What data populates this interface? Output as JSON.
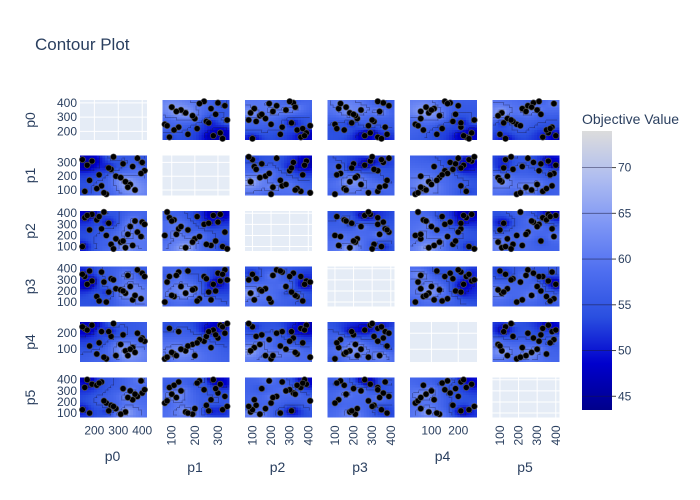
{
  "chart_data": {
    "type": "contour",
    "title": "Contour Plot",
    "params": [
      "p0",
      "p1",
      "p2",
      "p3",
      "p4",
      "p5"
    ],
    "x_ticks": {
      "p0": [
        200,
        300,
        400
      ],
      "p1": [
        100,
        200,
        300
      ],
      "p2": [
        100,
        200,
        300,
        400
      ],
      "p3": [
        100,
        200,
        300,
        400
      ],
      "p4": [
        100,
        200
      ],
      "p5": [
        100,
        200,
        300,
        400
      ]
    },
    "y_ticks": {
      "p0": [
        200,
        300,
        400
      ],
      "p1": [
        100,
        200,
        300
      ],
      "p2": [
        100,
        200,
        300,
        400
      ],
      "p3": [
        100,
        200,
        300,
        400
      ],
      "p4": [
        100,
        200
      ],
      "p5": [
        100,
        200,
        300,
        400
      ]
    },
    "ranges": {
      "p0": [
        140,
        420
      ],
      "p1": [
        60,
        350
      ],
      "p2": [
        60,
        420
      ],
      "p3": [
        60,
        420
      ],
      "p4": [
        20,
        270
      ],
      "p5": [
        60,
        420
      ]
    },
    "colorbar": {
      "title": "Objective Value",
      "ticks": [
        45,
        50,
        55,
        60,
        65,
        70
      ],
      "range": [
        43.5,
        74
      ],
      "colorscale": [
        "#00008b",
        "#0000cd",
        "#2a4fe0",
        "#4f6ff0",
        "#7e96f5",
        "#afbdf0",
        "#dcdcdc"
      ]
    },
    "points": [
      {
        "p0": 160,
        "p1": 90,
        "p2": 360,
        "p3": 330,
        "p4": 230,
        "p5": 330
      },
      {
        "p0": 400,
        "p1": 300,
        "p2": 320,
        "p3": 360,
        "p4": 170,
        "p5": 280
      },
      {
        "p0": 290,
        "p1": 200,
        "p2": 170,
        "p3": 220,
        "p4": 60,
        "p5": 140
      },
      {
        "p0": 230,
        "p1": 130,
        "p2": 260,
        "p3": 370,
        "p4": 210,
        "p5": 380
      },
      {
        "p0": 360,
        "p1": 270,
        "p2": 110,
        "p3": 120,
        "p4": 110,
        "p5": 220
      },
      {
        "p0": 190,
        "p1": 310,
        "p2": 390,
        "p3": 290,
        "p4": 250,
        "p5": 360
      },
      {
        "p0": 330,
        "p1": 160,
        "p2": 90,
        "p3": 180,
        "p4": 90,
        "p5": 110
      },
      {
        "p0": 410,
        "p1": 240,
        "p2": 300,
        "p3": 330,
        "p4": 150,
        "p5": 310
      },
      {
        "p0": 250,
        "p1": 70,
        "p2": 200,
        "p3": 100,
        "p4": 40,
        "p5": 190
      },
      {
        "p0": 170,
        "p1": 280,
        "p2": 380,
        "p3": 260,
        "p4": 220,
        "p5": 400
      },
      {
        "p0": 310,
        "p1": 190,
        "p2": 140,
        "p3": 210,
        "p4": 130,
        "p5": 90
      },
      {
        "p0": 380,
        "p1": 330,
        "p2": 230,
        "p3": 390,
        "p4": 200,
        "p5": 250
      },
      {
        "p0": 210,
        "p1": 110,
        "p2": 340,
        "p3": 150,
        "p4": 70,
        "p5": 350
      },
      {
        "p0": 270,
        "p1": 250,
        "p2": 120,
        "p3": 310,
        "p4": 180,
        "p5": 170
      },
      {
        "p0": 350,
        "p1": 140,
        "p2": 280,
        "p3": 240,
        "p4": 100,
        "p5": 300
      },
      {
        "p0": 150,
        "p1": 320,
        "p2": 100,
        "p3": 350,
        "p4": 240,
        "p5": 130
      },
      {
        "p0": 395,
        "p1": 220,
        "p2": 190,
        "p3": 130,
        "p4": 160,
        "p5": 390
      },
      {
        "p0": 240,
        "p1": 80,
        "p2": 410,
        "p3": 280,
        "p4": 50,
        "p5": 210
      },
      {
        "p0": 320,
        "p1": 290,
        "p2": 150,
        "p3": 200,
        "p4": 190,
        "p5": 320
      },
      {
        "p0": 180,
        "p1": 170,
        "p2": 250,
        "p3": 380,
        "p4": 120,
        "p5": 100
      },
      {
        "p0": 370,
        "p1": 100,
        "p2": 330,
        "p3": 160,
        "p4": 80,
        "p5": 270
      },
      {
        "p0": 280,
        "p1": 340,
        "p2": 80,
        "p3": 300,
        "p4": 260,
        "p5": 160
      },
      {
        "p0": 220,
        "p1": 210,
        "p2": 370,
        "p3": 110,
        "p4": 140,
        "p5": 370
      },
      {
        "p0": 340,
        "p1": 120,
        "p2": 210,
        "p3": 340,
        "p4": 60,
        "p5": 240
      },
      {
        "p0": 260,
        "p1": 260,
        "p2": 310,
        "p3": 190,
        "p4": 210,
        "p5": 120
      }
    ]
  }
}
